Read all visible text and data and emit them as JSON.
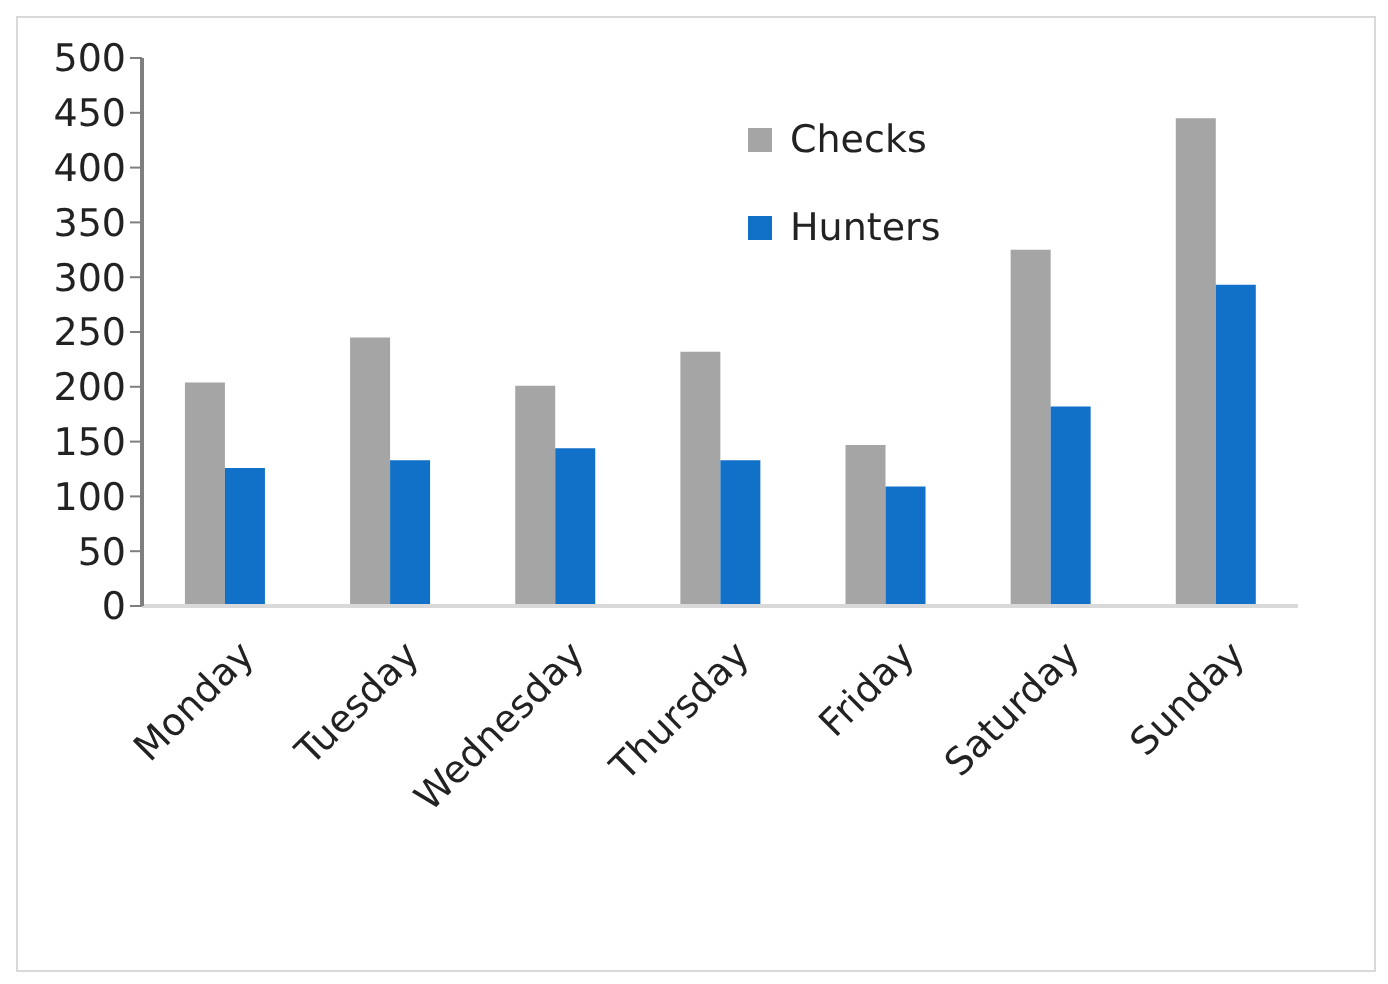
{
  "chart_data": {
    "type": "bar",
    "categories": [
      "Monday",
      "Tuesday",
      "Wednesday",
      "Thursday",
      "Friday",
      "Saturday",
      "Sunday"
    ],
    "series": [
      {
        "name": "Checks",
        "color": "#a5a5a5",
        "values": [
          204,
          245,
          201,
          232,
          147,
          325,
          445
        ]
      },
      {
        "name": "Hunters",
        "color": "#1170c8",
        "values": [
          126,
          133,
          144,
          133,
          109,
          182,
          293
        ]
      }
    ],
    "ylim": [
      0,
      500
    ],
    "yticks": [
      0,
      50,
      100,
      150,
      200,
      250,
      300,
      350,
      400,
      450,
      500
    ],
    "grid": false,
    "legend": "top"
  }
}
